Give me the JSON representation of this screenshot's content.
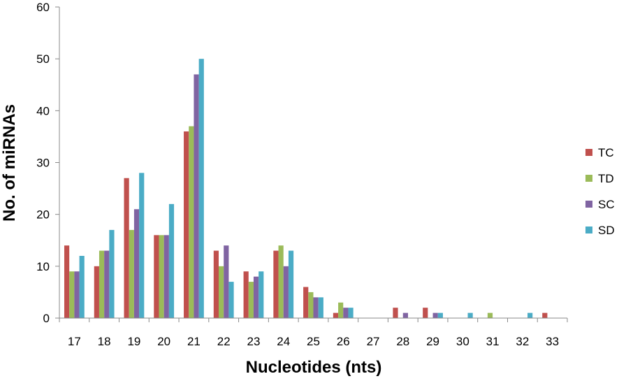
{
  "chart_data": {
    "type": "bar",
    "title": "",
    "xlabel": "Nucleotides (nts)",
    "ylabel": "No. of miRNAs",
    "ylim": [
      0,
      60
    ],
    "yticks": [
      0,
      10,
      20,
      30,
      40,
      50,
      60
    ],
    "grid": false,
    "legend_position": "right",
    "categories": [
      "17",
      "18",
      "19",
      "20",
      "21",
      "22",
      "23",
      "24",
      "25",
      "26",
      "27",
      "28",
      "29",
      "30",
      "31",
      "32",
      "33"
    ],
    "series": [
      {
        "name": "TC",
        "color": "#C0504D",
        "values": [
          14,
          10,
          27,
          16,
          36,
          13,
          9,
          13,
          6,
          1,
          0,
          2,
          2,
          0,
          0,
          0,
          1
        ]
      },
      {
        "name": "TD",
        "color": "#9BBB59",
        "values": [
          9,
          13,
          17,
          16,
          37,
          10,
          7,
          14,
          5,
          3,
          0,
          0,
          0,
          0,
          1,
          0,
          0
        ]
      },
      {
        "name": "SC",
        "color": "#8064A2",
        "values": [
          9,
          13,
          21,
          16,
          47,
          14,
          8,
          10,
          4,
          2,
          0,
          1,
          1,
          0,
          0,
          0,
          0
        ]
      },
      {
        "name": "SD",
        "color": "#4BACC6",
        "values": [
          12,
          17,
          28,
          22,
          50,
          7,
          9,
          13,
          4,
          2,
          0,
          0,
          1,
          1,
          0,
          1,
          0
        ]
      }
    ]
  }
}
